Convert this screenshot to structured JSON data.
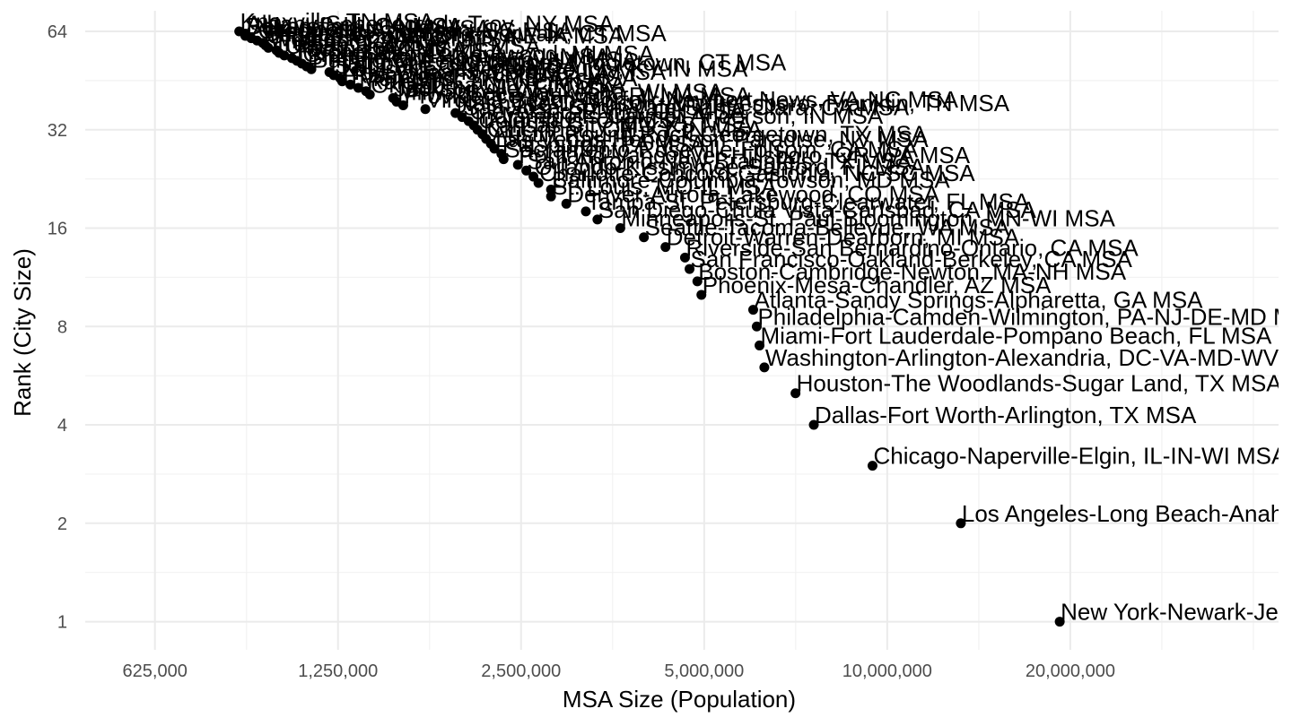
{
  "chart_data": {
    "type": "scatter",
    "xlabel": "MSA Size (Population)",
    "ylabel": "Rank (City Size)",
    "x_scale": "log",
    "y_scale": "log",
    "xlim": [
      480000,
      44000000
    ],
    "ylim": [
      0.82,
      74
    ],
    "x_ticks": [
      {
        "value": 625000,
        "label": "625,000"
      },
      {
        "value": 1250000,
        "label": "1,250,000"
      },
      {
        "value": 2500000,
        "label": "2,500,000"
      },
      {
        "value": 5000000,
        "label": "5,000,000"
      },
      {
        "value": 10000000,
        "label": "10,000,000"
      },
      {
        "value": 20000000,
        "label": "20,000,000"
      }
    ],
    "y_ticks": [
      {
        "value": 1,
        "label": "1"
      },
      {
        "value": 2,
        "label": "2"
      },
      {
        "value": 4,
        "label": "4"
      },
      {
        "value": 8,
        "label": "8"
      },
      {
        "value": 16,
        "label": "16"
      },
      {
        "value": 32,
        "label": "32"
      },
      {
        "value": 64,
        "label": "64"
      }
    ],
    "grid": true,
    "points": [
      {
        "rank": 1,
        "population": 19216000,
        "label": "New York-Newark-Jersey City, NY-NJ-PA MSA"
      },
      {
        "rank": 2,
        "population": 13214000,
        "label": "Los Angeles-Long Beach-Anaheim, CA MSA"
      },
      {
        "rank": 3,
        "population": 9458000,
        "label": "Chicago-Naperville-Elgin, IL-IN-WI MSA"
      },
      {
        "rank": 4,
        "population": 7573000,
        "label": "Dallas-Fort Worth-Arlington, TX MSA"
      },
      {
        "rank": 5,
        "population": 7066000,
        "label": "Houston-The Woodlands-Sugar Land, TX MSA"
      },
      {
        "rank": 6,
        "population": 6280000,
        "label": "Washington-Arlington-Alexandria, DC-VA-MD-WV MSA"
      },
      {
        "rank": 7,
        "population": 6166000,
        "label": "Miami-Fort Lauderdale-Pompano Beach, FL MSA"
      },
      {
        "rank": 8,
        "population": 6102000,
        "label": "Philadelphia-Camden-Wilmington, PA-NJ-DE-MD MSA"
      },
      {
        "rank": 9,
        "population": 6020000,
        "label": "Atlanta-Sandy Springs-Alpharetta, GA MSA"
      },
      {
        "rank": 10,
        "population": 4948000,
        "label": "Phoenix-Mesa-Chandler, AZ MSA"
      },
      {
        "rank": 11,
        "population": 4873000,
        "label": "Boston-Cambridge-Newton, MA-NH MSA"
      },
      {
        "rank": 12,
        "population": 4731000,
        "label": "San Francisco-Oakland-Berkeley, CA MSA"
      },
      {
        "rank": 13,
        "population": 4650000,
        "label": "Riverside-San Bernardino-Ontario, CA MSA"
      },
      {
        "rank": 14,
        "population": 4319000,
        "label": "Detroit-Warren-Dearborn, MI MSA"
      },
      {
        "rank": 15,
        "population": 3980000,
        "label": "Seattle-Tacoma-Bellevue, WA MSA"
      },
      {
        "rank": 16,
        "population": 3640000,
        "label": "Minneapolis-St. Paul-Bloomington, MN-WI MSA"
      },
      {
        "rank": 17,
        "population": 3338000,
        "label": "San Diego-Chula Vista-Carlsbad, CA MSA"
      },
      {
        "rank": 18,
        "population": 3195000,
        "label": "Tampa-St. Petersburg-Clearwater, FL MSA"
      },
      {
        "rank": 19,
        "population": 2967000,
        "label": "Denver-Aurora-Lakewood, CO MSA"
      },
      {
        "rank": 20,
        "population": 2800000,
        "label": "St. Louis, MO-IL MSA"
      },
      {
        "rank": 21,
        "population": 2800000,
        "label": "Baltimore-Columbia-Towson, MD MSA"
      },
      {
        "rank": 22,
        "population": 2670000,
        "label": "Charlotte-Concord-Gastonia, NC-SC MSA"
      },
      {
        "rank": 23,
        "population": 2620000,
        "label": "Orlando-Kissimmee-Sanford, FL MSA"
      },
      {
        "rank": 24,
        "population": 2550000,
        "label": "San Antonio-New Braunfels, TX MSA"
      },
      {
        "rank": 25,
        "population": 2470000,
        "label": "Portland-Vancouver-Hillsboro, OR-WA MSA"
      },
      {
        "rank": 26,
        "population": 2340000,
        "label": "Sacramento-Roseville-Folsom, CA MSA"
      },
      {
        "rank": 27,
        "population": 2320000,
        "label": "Pittsburgh, PA MSA"
      },
      {
        "rank": 28,
        "population": 2260000,
        "label": "Las Vegas-Henderson-Paradise, NV MSA"
      },
      {
        "rank": 29,
        "population": 2230000,
        "label": "Austin-Round Rock-Georgetown, TX MSA"
      },
      {
        "rank": 30,
        "population": 2190000,
        "label": "Cincinnati, OH-KY-IN MSA"
      },
      {
        "rank": 31,
        "population": 2160000,
        "label": "Kansas City, MO-KS MSA"
      },
      {
        "rank": 32,
        "population": 2120000,
        "label": "Columbus, OH MSA"
      },
      {
        "rank": 33,
        "population": 2090000,
        "label": "Indianapolis-Carmel-Anderson, IN MSA"
      },
      {
        "rank": 34,
        "population": 2050000,
        "label": "Cleveland-Elyria, OH MSA"
      },
      {
        "rank": 35,
        "population": 2000000,
        "label": "San Jose-Sunnyvale-Santa Clara, CA MSA"
      },
      {
        "rank": 36,
        "population": 1950000,
        "label": "Nashville-Davidson--Murfreesboro--Franklin, TN MSA"
      },
      {
        "rank": 37,
        "population": 1740000,
        "label": "Virginia Beach-Norfolk-Newport News, VA-NC MSA"
      },
      {
        "rank": 38,
        "population": 1600000,
        "label": "Providence-Warwick, RI-MA MSA"
      },
      {
        "rank": 39,
        "population": 1560000,
        "label": "Milwaukee-Waukesha, WI MSA"
      },
      {
        "rank": 40,
        "population": 1540000,
        "label": "Jacksonville, FL MSA"
      },
      {
        "rank": 41,
        "population": 1410000,
        "label": "Oklahoma City, OK MSA"
      },
      {
        "rank": 42,
        "population": 1390000,
        "label": "Raleigh-Cary, NC MSA"
      },
      {
        "rank": 43,
        "population": 1350000,
        "label": "Memphis, TN-MS-AR MSA"
      },
      {
        "rank": 44,
        "population": 1310000,
        "label": "Richmond, VA MSA"
      },
      {
        "rank": 45,
        "population": 1270000,
        "label": "New Orleans-Metairie, LA MSA"
      },
      {
        "rank": 46,
        "population": 1260000,
        "label": "Louisville/Jefferson County, KY-IN MSA"
      },
      {
        "rank": 47,
        "population": 1230000,
        "label": "Salt Lake City, UT MSA"
      },
      {
        "rank": 48,
        "population": 1210000,
        "label": "Hartford-East Hartford-Middletown, CT MSA"
      },
      {
        "rank": 49,
        "population": 1130000,
        "label": "Buffalo-Cheektowaga, NY MSA"
      },
      {
        "rank": 50,
        "population": 1110000,
        "label": "Birmingham-Hoover, AL MSA"
      },
      {
        "rank": 51,
        "population": 1090000,
        "label": "Grand Rapids-Kentwood, MI MSA"
      },
      {
        "rank": 52,
        "population": 1070000,
        "label": "Rochester, NY MSA"
      },
      {
        "rank": 53,
        "population": 1050000,
        "label": "Tucson, AZ MSA"
      },
      {
        "rank": 54,
        "population": 1020000,
        "label": "Urban Honolulu, HI MSA"
      },
      {
        "rank": 55,
        "population": 1000000,
        "label": "Tulsa, OK MSA"
      },
      {
        "rank": 56,
        "population": 990000,
        "label": "Fresno, CA MSA"
      },
      {
        "rank": 57,
        "population": 960000,
        "label": "Worcester, MA-CT MSA"
      },
      {
        "rank": 58,
        "population": 950000,
        "label": "Omaha-Council Bluffs, NE-IA MSA"
      },
      {
        "rank": 59,
        "population": 940000,
        "label": "Bridgeport-Stamford-Norwalk, CT MSA"
      },
      {
        "rank": 60,
        "population": 920000,
        "label": "Greenville-Anderson, SC MSA"
      },
      {
        "rank": 61,
        "population": 900000,
        "label": "Albuquerque, NM MSA"
      },
      {
        "rank": 62,
        "population": 880000,
        "label": "Bakersfield, CA MSA"
      },
      {
        "rank": 63,
        "population": 880000,
        "label": "Albany-Schenectady-Troy, NY MSA"
      },
      {
        "rank": 64,
        "population": 860000,
        "label": "Knoxville, TN MSA"
      }
    ]
  }
}
